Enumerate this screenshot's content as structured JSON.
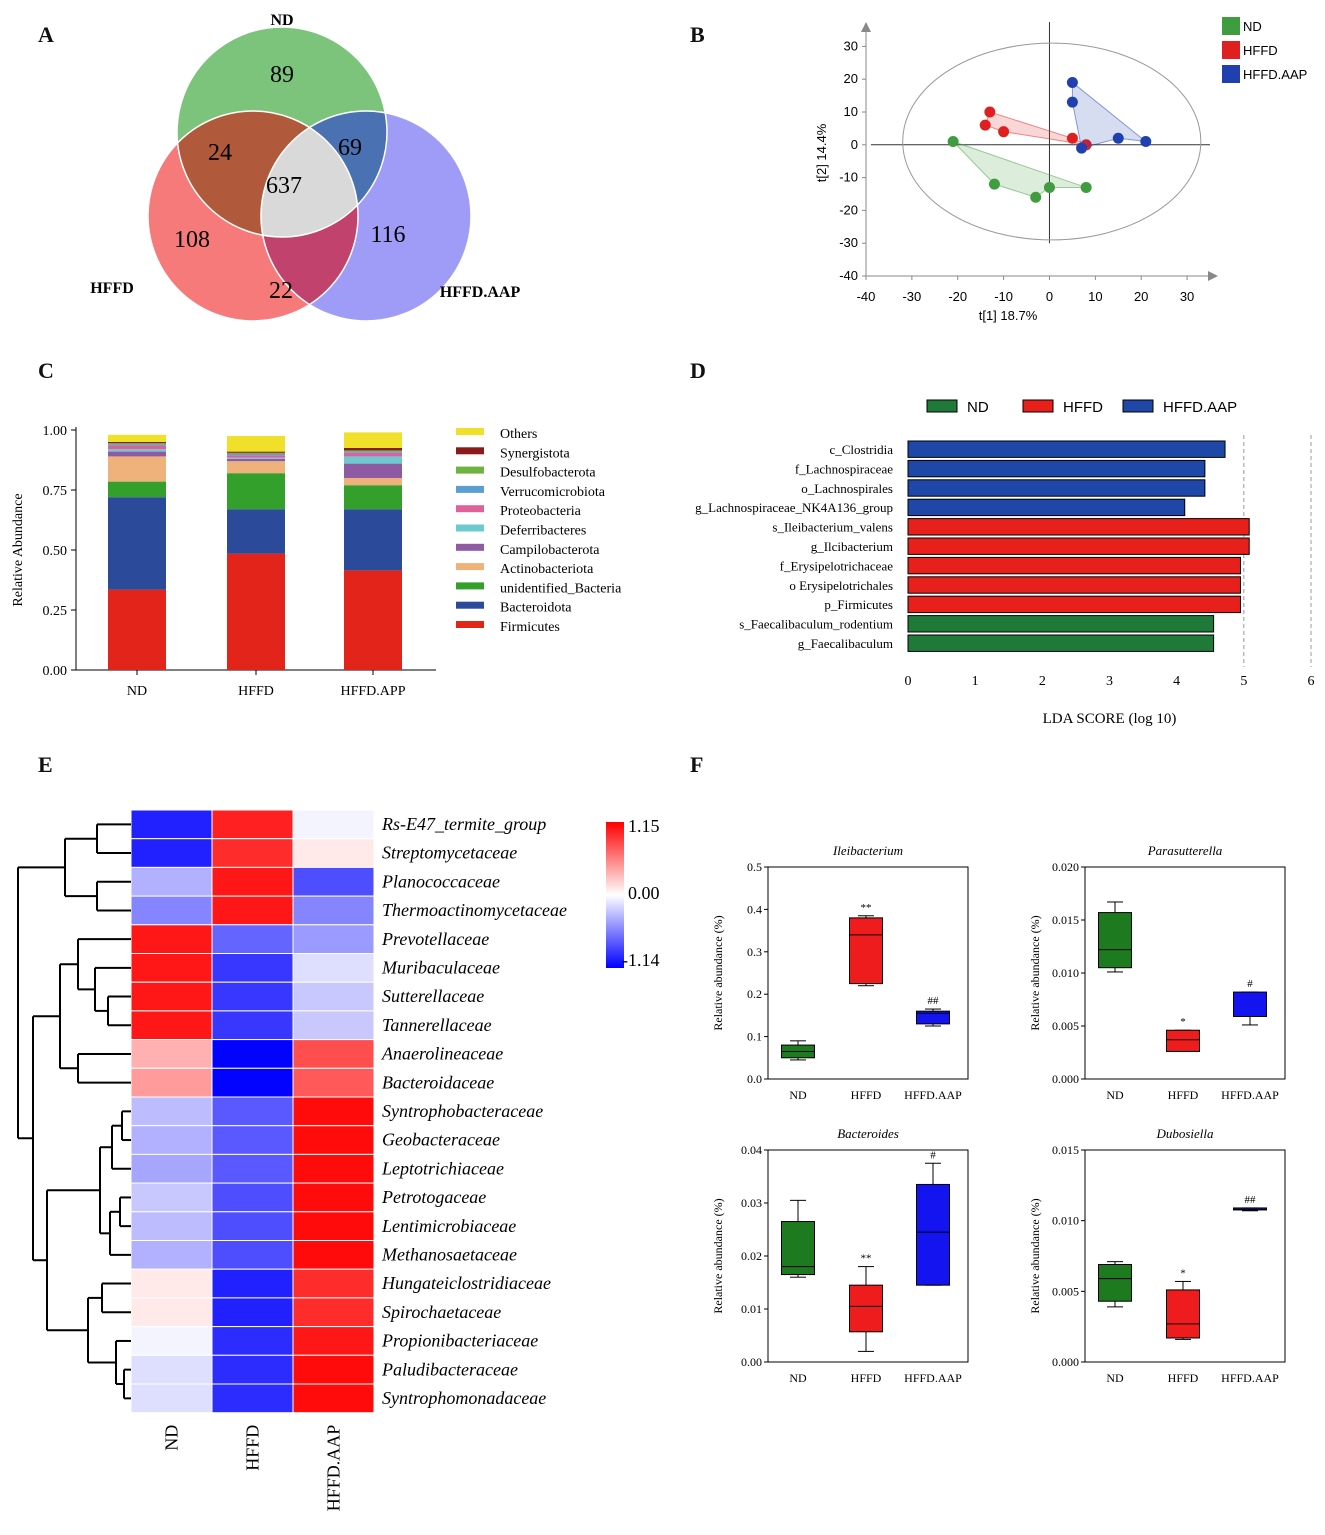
{
  "panels": {
    "A": "A",
    "B": "B",
    "C": "C",
    "D": "D",
    "E": "E",
    "F": "F"
  },
  "chart_data": [
    {
      "type": "venn",
      "panel": "A",
      "sets": [
        "ND",
        "HFFD",
        "HFFD.AAP"
      ],
      "colors": {
        "ND": "#7cc47c",
        "HFFD": "#f77a7a",
        "HFFD.AAP": "#9f9cf7"
      },
      "regions": {
        "ND_only": "89",
        "HFFD_only": "108",
        "AAP_only": "116",
        "ND_HFFD": "24",
        "ND_AAP": "69",
        "HFFD_AAP": "22",
        "all": "637"
      }
    },
    {
      "type": "scatter",
      "panel": "B",
      "xlabel": "t[1] 18.7%",
      "ylabel": "t[2] 14.4%",
      "xlim": [
        -40,
        35
      ],
      "ylim": [
        -40,
        35
      ],
      "xticks": [
        -40,
        -30,
        -20,
        -10,
        0,
        10,
        20,
        30
      ],
      "yticks": [
        -40,
        -30,
        -20,
        -10,
        0,
        10,
        20,
        30
      ],
      "xtick_labels": [
        "-40",
        "-30",
        "-20",
        "-10",
        "0",
        "10",
        "20",
        "30"
      ],
      "ytick_labels": [
        "-40",
        "-30",
        "-20",
        "-10",
        "0",
        "10",
        "20",
        "30"
      ],
      "legend": [
        "ND",
        "HFFD",
        "HFFD.AAP"
      ],
      "series": [
        {
          "name": "ND",
          "color": "#3f9d3f",
          "points": [
            [
              -21,
              1
            ],
            [
              -12,
              -12
            ],
            [
              -3,
              -16
            ],
            [
              0,
              -13
            ],
            [
              8,
              -13
            ]
          ]
        },
        {
          "name": "HFFD",
          "color": "#e02020",
          "points": [
            [
              -13,
              10
            ],
            [
              -14,
              6
            ],
            [
              -10,
              4
            ],
            [
              5,
              2
            ],
            [
              8,
              0
            ]
          ]
        },
        {
          "name": "HFFD.AAP",
          "color": "#2040b0",
          "points": [
            [
              5,
              19
            ],
            [
              5,
              13
            ],
            [
              7,
              -1
            ],
            [
              15,
              2
            ],
            [
              21,
              1
            ]
          ]
        }
      ]
    },
    {
      "type": "bar",
      "panel": "C",
      "stacked": true,
      "ylabel": "Relative Abundance",
      "ylim": [
        0,
        1
      ],
      "yticks": [
        0,
        0.25,
        0.5,
        0.75,
        1.0
      ],
      "ytick_labels": [
        "0.00",
        "0.25",
        "0.50",
        "0.75",
        "1.00"
      ],
      "categories": [
        "ND",
        "HFFD",
        "HFFD.APP"
      ],
      "series": [
        {
          "name": "Firmicutes",
          "color": "#e3241b",
          "values": [
            0.335,
            0.485,
            0.415
          ]
        },
        {
          "name": "Bacteroidota",
          "color": "#2c4a9a",
          "values": [
            0.385,
            0.185,
            0.255
          ]
        },
        {
          "name": "unidentified_Bacteria",
          "color": "#33a02c",
          "values": [
            0.065,
            0.15,
            0.1
          ]
        },
        {
          "name": "Actinobacteriota",
          "color": "#efb27b",
          "values": [
            0.105,
            0.05,
            0.03
          ]
        },
        {
          "name": "Campilobacterota",
          "color": "#8e5aa2",
          "values": [
            0.02,
            0.01,
            0.06
          ]
        },
        {
          "name": "Deferribacteres",
          "color": "#6cc9cf",
          "values": [
            0.01,
            0.005,
            0.03
          ]
        },
        {
          "name": "Proteobacteria",
          "color": "#e0609a",
          "values": [
            0.015,
            0.01,
            0.015
          ]
        },
        {
          "name": "Verrucomicrobiota",
          "color": "#5a9fd4",
          "values": [
            0.005,
            0.005,
            0.005
          ]
        },
        {
          "name": "Desulfobacterota",
          "color": "#6db33f",
          "values": [
            0.005,
            0.005,
            0.005
          ]
        },
        {
          "name": "Synergistota",
          "color": "#8b1a1a",
          "values": [
            0.005,
            0.005,
            0.01
          ]
        },
        {
          "name": "Others",
          "color": "#f0e02a",
          "values": [
            0.03,
            0.065,
            0.065
          ]
        }
      ],
      "legend_order": [
        "Others",
        "Synergistota",
        "Desulfobacterota",
        "Verrucomicrobiota",
        "Proteobacteria",
        "Deferribacteres",
        "Campilobacterota",
        "Actinobacteriota",
        "unidentified_Bacteria",
        "Bacteroidota",
        "Firmicutes"
      ]
    },
    {
      "type": "bar",
      "panel": "D",
      "orientation": "horizontal",
      "xlabel": "LDA SCORE (log 10)",
      "xlim": [
        0,
        6
      ],
      "xticks": [
        0,
        1,
        2,
        3,
        4,
        5,
        6
      ],
      "xtick_labels": [
        "0",
        "1",
        "2",
        "3",
        "4",
        "5",
        "6"
      ],
      "legend": [
        {
          "name": "ND",
          "color": "#1f7a3a"
        },
        {
          "name": "HFFD",
          "color": "#e8201c"
        },
        {
          "name": "HFFD.AAP",
          "color": "#1f47a8"
        }
      ],
      "categories": [
        "c_Clostridia",
        "f_Lachnospiraceae",
        "o_Lachnospirales",
        "g_Lachnospiraceae_NK4A136_group",
        "s_Ileibacterium_valens",
        "g_Ilcibacterium",
        "f_Erysipelotrichaceae",
        "o Erysipelotrichales",
        "p_Firmicutes",
        "s_Faecalibaculum_rodentium",
        "g_Faecalibaculum"
      ],
      "groups": [
        "HFFD.AAP",
        "HFFD.AAP",
        "HFFD.AAP",
        "HFFD.AAP",
        "HFFD",
        "HFFD",
        "HFFD",
        "HFFD",
        "HFFD",
        "ND",
        "ND"
      ],
      "values": [
        4.72,
        4.42,
        4.42,
        4.12,
        5.08,
        5.08,
        4.95,
        4.95,
        4.95,
        4.55,
        4.55
      ]
    },
    {
      "type": "heatmap",
      "panel": "E",
      "columns": [
        "ND",
        "HFFD",
        "HFFD.AAP"
      ],
      "rows": [
        "Rs-E47_termite_group",
        "Streptomycetaceae",
        "Planococcaceae",
        "Thermoactinomycetaceae",
        "Prevotellaceae",
        "Muribaculaceae",
        "Sutterellaceae",
        "Tannerellaceae",
        "Anaerolineaceae",
        "Bacteroidaceae",
        "Syntrophobacteraceae",
        "Geobacteraceae",
        "Leptotrichiaceae",
        "Petrotogaceae",
        "Lentimicrobiaceae",
        "Methanosaetaceae",
        "Hungateiclostridiaceae",
        "Spirochaetaceae",
        "Propionibacteriaceae",
        "Paludibacteraceae",
        "Syntrophomonadaceae"
      ],
      "values": [
        [
          -1.0,
          1.0,
          -0.05
        ],
        [
          -1.0,
          0.95,
          0.1
        ],
        [
          -0.35,
          1.05,
          -0.8
        ],
        [
          -0.55,
          1.05,
          -0.55
        ],
        [
          1.05,
          -0.7,
          -0.45
        ],
        [
          1.05,
          -0.9,
          -0.15
        ],
        [
          1.05,
          -0.9,
          -0.25
        ],
        [
          1.05,
          -0.9,
          -0.25
        ],
        [
          0.35,
          -1.14,
          0.8
        ],
        [
          0.45,
          -1.14,
          0.75
        ],
        [
          -0.3,
          -0.75,
          1.1
        ],
        [
          -0.35,
          -0.75,
          1.1
        ],
        [
          -0.4,
          -0.75,
          1.1
        ],
        [
          -0.25,
          -0.8,
          1.1
        ],
        [
          -0.3,
          -0.8,
          1.1
        ],
        [
          -0.35,
          -0.8,
          1.1
        ],
        [
          0.1,
          -1.0,
          0.95
        ],
        [
          0.1,
          -1.0,
          0.95
        ],
        [
          -0.05,
          -0.95,
          1.05
        ],
        [
          -0.15,
          -0.95,
          1.1
        ],
        [
          -0.15,
          -0.95,
          1.1
        ]
      ],
      "colorbar": {
        "min": -1.14,
        "mid": 0.0,
        "max": 1.15,
        "labels": [
          "1.15",
          "0.00",
          "-1.14"
        ]
      }
    },
    {
      "type": "box",
      "panel": "F",
      "ylabel": "Relative abundance (%)",
      "categories": [
        "ND",
        "HFFD",
        "HFFD.AAP"
      ],
      "colors": [
        "#1e7a1e",
        "#ee1c1c",
        "#1414f0"
      ],
      "subplots": [
        {
          "title": "Ileibacterium",
          "ylim": [
            0,
            0.5
          ],
          "yticks": [
            0,
            0.1,
            0.2,
            0.3,
            0.4,
            0.5
          ],
          "ytick_labels": [
            "0.0",
            "0.1",
            "0.2",
            "0.3",
            "0.4",
            "0.5"
          ],
          "boxes": [
            {
              "min": 0.045,
              "q1": 0.05,
              "median": 0.065,
              "q3": 0.08,
              "max": 0.09,
              "mark": ""
            },
            {
              "min": 0.22,
              "q1": 0.225,
              "median": 0.34,
              "q3": 0.38,
              "max": 0.385,
              "mark": "**"
            },
            {
              "min": 0.125,
              "q1": 0.13,
              "median": 0.155,
              "q3": 0.16,
              "max": 0.165,
              "mark": "##"
            }
          ]
        },
        {
          "title": "Parasutterella",
          "ylim": [
            0,
            0.02
          ],
          "yticks": [
            0,
            0.005,
            0.01,
            0.015,
            0.02
          ],
          "ytick_labels": [
            "0.000",
            "0.005",
            "0.010",
            "0.015",
            "0.020"
          ],
          "boxes": [
            {
              "min": 0.0101,
              "q1": 0.0105,
              "median": 0.0122,
              "q3": 0.0157,
              "max": 0.0167,
              "mark": ""
            },
            {
              "min": 0.0026,
              "q1": 0.0026,
              "median": 0.0037,
              "q3": 0.0046,
              "max": 0.0046,
              "mark": "*"
            },
            {
              "min": 0.0051,
              "q1": 0.0059,
              "median": 0.0059,
              "q3": 0.0082,
              "max": 0.0082,
              "mark": "#"
            }
          ]
        },
        {
          "title": "Bacteroides",
          "ylim": [
            0,
            0.04
          ],
          "yticks": [
            0,
            0.01,
            0.02,
            0.03,
            0.04
          ],
          "ytick_labels": [
            "0.00",
            "0.01",
            "0.02",
            "0.03",
            "0.04"
          ],
          "boxes": [
            {
              "min": 0.016,
              "q1": 0.0165,
              "median": 0.018,
              "q3": 0.0265,
              "max": 0.0305,
              "mark": ""
            },
            {
              "min": 0.002,
              "q1": 0.0057,
              "median": 0.0105,
              "q3": 0.0145,
              "max": 0.018,
              "mark": "**"
            },
            {
              "min": 0.0145,
              "q1": 0.0145,
              "median": 0.0245,
              "q3": 0.0335,
              "max": 0.0375,
              "mark": "#"
            }
          ]
        },
        {
          "title": "Dubosiella",
          "ylim": [
            0,
            0.015
          ],
          "yticks": [
            0,
            0.005,
            0.01,
            0.015
          ],
          "ytick_labels": [
            "0.000",
            "0.005",
            "0.010",
            "0.015"
          ],
          "boxes": [
            {
              "min": 0.0039,
              "q1": 0.0043,
              "median": 0.0059,
              "q3": 0.0069,
              "max": 0.0071,
              "mark": ""
            },
            {
              "min": 0.0016,
              "q1": 0.0017,
              "median": 0.0027,
              "q3": 0.0051,
              "max": 0.0057,
              "mark": "*"
            },
            {
              "min": 0.0107,
              "q1": 0.0108,
              "median": 0.0108,
              "q3": 0.0109,
              "max": 0.0109,
              "mark": "##"
            }
          ]
        }
      ]
    }
  ]
}
